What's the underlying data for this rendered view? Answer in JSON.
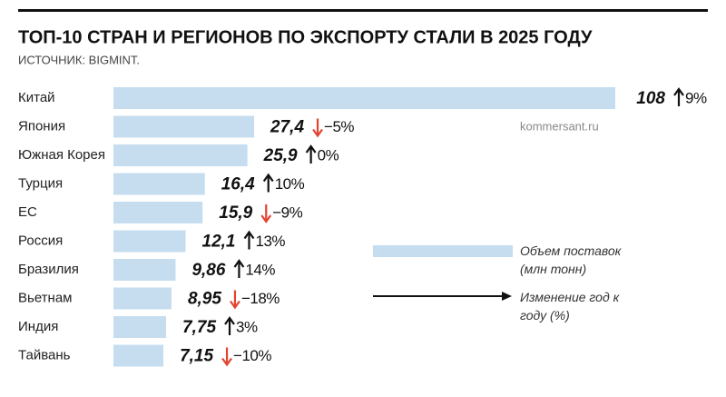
{
  "chart_data": {
    "type": "bar",
    "orientation": "horizontal",
    "title": "ТОП-10 СТРАН И РЕГИОНОВ ПО ЭКСПОРТУ СТАЛИ В 2025 ГОДУ",
    "subtitle": "ИСТОЧНИК: BIGMINT.",
    "watermark": "kommersant.ru",
    "categories": [
      "Китай",
      "Япония",
      "Южная Корея",
      "Турция",
      "ЕС",
      "Россия",
      "Бразилия",
      "Вьетнам",
      "Индия",
      "Тайвань"
    ],
    "xlim": [
      -4,
      108
    ],
    "series": [
      {
        "name": "Объем поставок (млн тонн)",
        "color": "#c6ddf0",
        "values": [
          108,
          27.4,
          25.9,
          16.4,
          15.9,
          12.1,
          9.86,
          8.95,
          7.75,
          7.15
        ],
        "value_labels": [
          "108",
          "27,4",
          "25,9",
          "16,4",
          "15,9",
          "12,1",
          "9,86",
          "8,95",
          "7,75",
          "7,15"
        ]
      }
    ],
    "change": {
      "name": "Изменение год к году (%)",
      "up_color": "#111111",
      "down_color": "#e2442f",
      "values": [
        9,
        -5,
        0,
        10,
        -9,
        13,
        14,
        -18,
        3,
        -10
      ],
      "value_labels": [
        "9%",
        "−5%",
        "0%",
        "10%",
        "−9%",
        "13%",
        "14%",
        "−18%",
        "3%",
        "−10%"
      ]
    }
  }
}
